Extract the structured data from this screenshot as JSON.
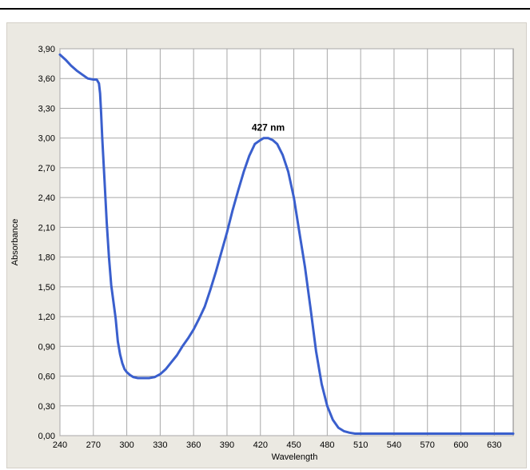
{
  "chart_data": {
    "type": "line",
    "title": "",
    "xlabel": "Wavelength",
    "ylabel": "Absorbance",
    "xlim": [
      240,
      647
    ],
    "ylim": [
      0,
      3.9
    ],
    "x_ticks": [
      240,
      270,
      300,
      330,
      360,
      390,
      420,
      450,
      480,
      510,
      540,
      570,
      600,
      630
    ],
    "x_tick_labels": [
      "240",
      "270",
      "300",
      "330",
      "360",
      "390",
      "420",
      "450",
      "480",
      "510",
      "540",
      "570",
      "600",
      "630"
    ],
    "y_ticks": [
      0,
      0.3,
      0.6,
      0.9,
      1.2,
      1.5,
      1.8,
      2.1,
      2.4,
      2.7,
      3.0,
      3.3,
      3.6,
      3.9
    ],
    "y_tick_labels": [
      "0,00",
      "0,30",
      "0,60",
      "0,90",
      "1,20",
      "1,50",
      "1,80",
      "2,10",
      "2,40",
      "2,70",
      "3,00",
      "3,30",
      "3,60",
      "3,90"
    ],
    "grid": true,
    "series": [
      {
        "color": "#3a5fcd",
        "x": [
          240,
          245,
          250,
          255,
          260,
          265,
          270,
          273,
          275,
          276,
          277,
          278,
          280,
          282,
          284,
          286,
          288,
          290,
          292,
          294,
          296,
          298,
          300,
          303,
          306,
          310,
          315,
          320,
          325,
          330,
          335,
          340,
          345,
          350,
          355,
          360,
          365,
          370,
          375,
          380,
          385,
          390,
          395,
          400,
          405,
          410,
          415,
          420,
          423,
          427,
          431,
          435,
          440,
          445,
          450,
          455,
          460,
          465,
          470,
          475,
          480,
          485,
          490,
          495,
          500,
          505,
          510,
          515,
          520,
          525,
          530,
          540,
          550,
          560,
          600,
          647
        ],
        "values": [
          3.84,
          3.79,
          3.73,
          3.68,
          3.64,
          3.6,
          3.59,
          3.59,
          3.55,
          3.45,
          3.25,
          3.0,
          2.58,
          2.15,
          1.8,
          1.52,
          1.35,
          1.18,
          0.95,
          0.82,
          0.73,
          0.67,
          0.64,
          0.61,
          0.59,
          0.58,
          0.58,
          0.58,
          0.59,
          0.62,
          0.67,
          0.74,
          0.81,
          0.9,
          0.98,
          1.07,
          1.18,
          1.3,
          1.47,
          1.65,
          1.85,
          2.05,
          2.27,
          2.47,
          2.66,
          2.82,
          2.94,
          2.98,
          3.0,
          3.0,
          2.98,
          2.94,
          2.83,
          2.66,
          2.4,
          2.05,
          1.7,
          1.28,
          0.85,
          0.52,
          0.3,
          0.16,
          0.08,
          0.045,
          0.03,
          0.02,
          0.02,
          0.02,
          0.02,
          0.02,
          0.02,
          0.02,
          0.02,
          0.02,
          0.02,
          0.02
        ]
      }
    ],
    "annotations": [
      {
        "text": "427 nm",
        "x": 427,
        "y": 3.0
      }
    ]
  }
}
